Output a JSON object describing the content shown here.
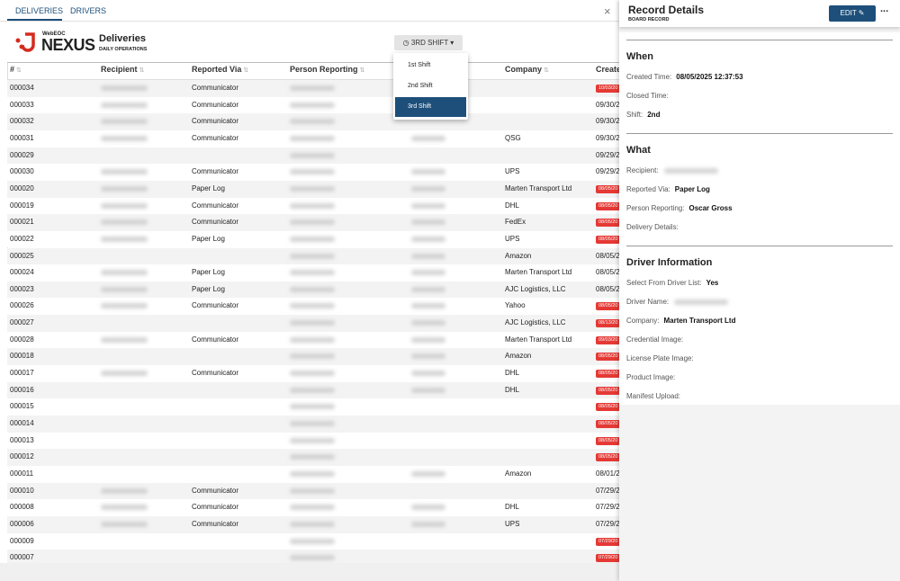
{
  "tabs": [
    "DELIVERIES",
    "DRIVERS"
  ],
  "logo": {
    "small": "WebEOC",
    "brand": "NEXUS"
  },
  "board": {
    "title": "Deliveries",
    "subtitle": "DAILY OPERATIONS"
  },
  "shift_button": "3RD SHIFT",
  "shift_menu": {
    "items": [
      "1st Shift",
      "2nd Shift",
      "3rd Shift"
    ],
    "selected": 2
  },
  "table": {
    "columns": [
      "#",
      "Recipient",
      "Reported Via",
      "Person Reporting",
      "Company",
      "Create"
    ],
    "rows": [
      {
        "id": "000034",
        "reported_via": "Communicator",
        "created": "10/03/20",
        "overdue": true
      },
      {
        "id": "000033",
        "reported_via": "Communicator",
        "created": "09/30/2"
      },
      {
        "id": "000032",
        "reported_via": "Communicator",
        "created": "09/30/2"
      },
      {
        "id": "000031",
        "reported_via": "Communicator",
        "company": "QSG",
        "created": "09/30/2"
      },
      {
        "id": "000029",
        "created": "09/29/2"
      },
      {
        "id": "000030",
        "reported_via": "Communicator",
        "company": "UPS",
        "created": "09/29/2"
      },
      {
        "id": "000020",
        "reported_via": "Paper Log",
        "company": "Marten Transport Ltd",
        "created": "08/05/20",
        "overdue": true
      },
      {
        "id": "000019",
        "reported_via": "Communicator",
        "company": "DHL",
        "created": "08/05/20",
        "overdue": true
      },
      {
        "id": "000021",
        "reported_via": "Communicator",
        "company": "FedEx",
        "created": "08/05/20",
        "overdue": true
      },
      {
        "id": "000022",
        "reported_via": "Paper Log",
        "company": "UPS",
        "created": "08/05/20",
        "overdue": true
      },
      {
        "id": "000025",
        "company": "Amazon",
        "created": "08/05/2"
      },
      {
        "id": "000024",
        "reported_via": "Paper Log",
        "company": "Marten Transport Ltd",
        "created": "08/05/2"
      },
      {
        "id": "000023",
        "reported_via": "Paper Log",
        "company": "AJC Logistics, LLC",
        "created": "08/05/2"
      },
      {
        "id": "000026",
        "reported_via": "Communicator",
        "company": "Yahoo",
        "created": "08/05/20",
        "overdue": true
      },
      {
        "id": "000027",
        "company": "AJC Logistics, LLC",
        "created": "08/13/20",
        "overdue": true
      },
      {
        "id": "000028",
        "reported_via": "Communicator",
        "company": "Marten Transport Ltd",
        "created": "09/03/20",
        "overdue": true
      },
      {
        "id": "000018",
        "company": "Amazon",
        "created": "08/05/20",
        "overdue": true
      },
      {
        "id": "000017",
        "reported_via": "Communicator",
        "company": "DHL",
        "created": "08/05/20",
        "overdue": true
      },
      {
        "id": "000016",
        "company": "DHL",
        "created": "08/05/20",
        "overdue": true
      },
      {
        "id": "000015",
        "created": "08/05/20",
        "overdue": true
      },
      {
        "id": "000014",
        "created": "08/05/20",
        "overdue": true
      },
      {
        "id": "000013",
        "created": "08/05/20",
        "overdue": true
      },
      {
        "id": "000012",
        "created": "08/05/20",
        "overdue": true
      },
      {
        "id": "000011",
        "company": "Amazon",
        "created": "08/01/2"
      },
      {
        "id": "000010",
        "reported_via": "Communicator",
        "created": "07/29/2"
      },
      {
        "id": "000008",
        "reported_via": "Communicator",
        "company": "DHL",
        "created": "07/29/2"
      },
      {
        "id": "000006",
        "reported_via": "Communicator",
        "company": "UPS",
        "created": "07/29/2"
      },
      {
        "id": "000009",
        "created": "07/29/20",
        "overdue": true
      },
      {
        "id": "000007",
        "created": "07/29/20",
        "overdue": true
      }
    ]
  },
  "record": {
    "title": "Record Details",
    "subtitle": "BOARD RECORD",
    "edit": "EDIT",
    "more": "...",
    "sections": [
      {
        "heading": "When",
        "fields": [
          {
            "label": "Created Time:",
            "value": "08/05/2025 12:37:53"
          },
          {
            "label": "Closed Time:"
          },
          {
            "label": "Shift:",
            "value": "2nd"
          }
        ]
      },
      {
        "heading": "What",
        "fields": [
          {
            "label": "Recipient:",
            "redacted": true
          },
          {
            "label": "Reported Via:",
            "value": "Paper Log"
          },
          {
            "label": "Person Reporting:",
            "value": "Oscar Gross"
          },
          {
            "label": "Delivery Details:"
          }
        ]
      },
      {
        "heading": "Driver Information",
        "fields": [
          {
            "label": "Select From Driver List:",
            "value": "Yes"
          },
          {
            "label": "Driver Name:",
            "redacted": true
          },
          {
            "label": "Company:",
            "value": "Marten Transport Ltd"
          },
          {
            "label": "Credential Image:"
          },
          {
            "label": "License Plate Image:"
          },
          {
            "label": "Product Image:"
          },
          {
            "label": "Manifest Upload:"
          }
        ]
      }
    ]
  }
}
